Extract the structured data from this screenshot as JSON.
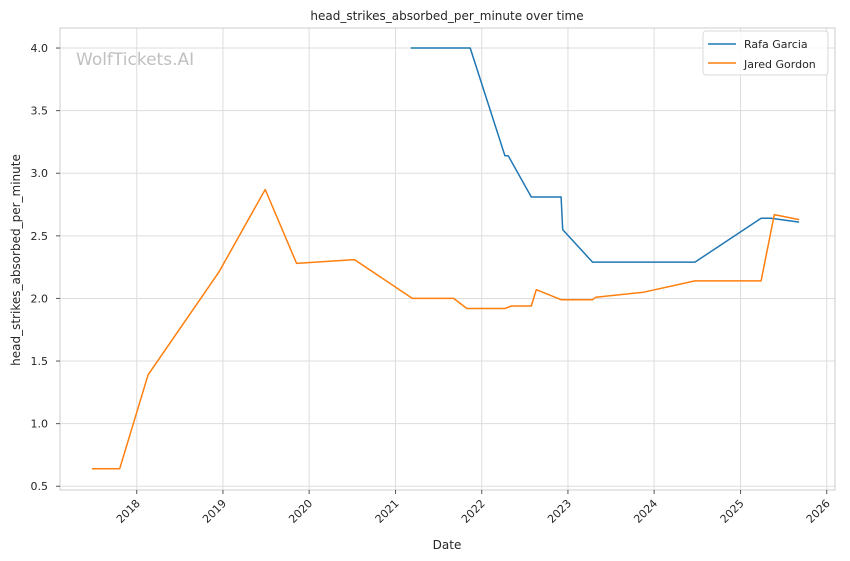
{
  "chart_data": {
    "type": "line",
    "title": "head_strikes_absorbed_per_minute over time",
    "xlabel": "Date",
    "ylabel": "head_strikes_absorbed_per_minute",
    "watermark": "WolfTickets.AI",
    "x_tick_labels": [
      "2018",
      "2019",
      "2020",
      "2021",
      "2022",
      "2023",
      "2024",
      "2025",
      "2026"
    ],
    "y_tick_labels": [
      "0.5",
      "1.0",
      "1.5",
      "2.0",
      "2.5",
      "3.0",
      "3.5",
      "4.0"
    ],
    "ylim": [
      0.47,
      4.16
    ],
    "xlim": [
      "2017-02-10",
      "2026-02-05"
    ],
    "grid": true,
    "legend_position": "top-right",
    "series": [
      {
        "name": "Rafa Garcia",
        "color": "#1f77b4",
        "points": [
          [
            "2021-03-06",
            4.0
          ],
          [
            "2021-11-13",
            4.0
          ],
          [
            "2022-04-09",
            3.14
          ],
          [
            "2022-04-23",
            3.14
          ],
          [
            "2022-07-30",
            2.81
          ],
          [
            "2022-12-03",
            2.81
          ],
          [
            "2022-12-10",
            2.55
          ],
          [
            "2023-04-15",
            2.29
          ],
          [
            "2024-06-22",
            2.29
          ],
          [
            "2025-03-29",
            2.64
          ],
          [
            "2025-05-10",
            2.64
          ],
          [
            "2025-09-06",
            2.61
          ]
        ]
      },
      {
        "name": "Jared Gordon",
        "color": "#ff7f0e",
        "points": [
          [
            "2017-06-25",
            0.64
          ],
          [
            "2017-10-21",
            0.64
          ],
          [
            "2018-02-18",
            1.39
          ],
          [
            "2018-12-15",
            2.21
          ],
          [
            "2019-06-29",
            2.87
          ],
          [
            "2019-11-09",
            2.28
          ],
          [
            "2020-07-11",
            2.31
          ],
          [
            "2021-03-13",
            2.0
          ],
          [
            "2021-09-04",
            2.0
          ],
          [
            "2021-10-30",
            1.92
          ],
          [
            "2022-04-09",
            1.92
          ],
          [
            "2022-05-07",
            1.94
          ],
          [
            "2022-07-30",
            1.94
          ],
          [
            "2022-08-20",
            2.07
          ],
          [
            "2022-12-03",
            1.99
          ],
          [
            "2023-04-15",
            1.99
          ],
          [
            "2023-04-29",
            2.01
          ],
          [
            "2023-11-18",
            2.05
          ],
          [
            "2024-06-22",
            2.14
          ],
          [
            "2025-03-29",
            2.14
          ],
          [
            "2025-05-24",
            2.67
          ],
          [
            "2025-09-06",
            2.63
          ]
        ]
      }
    ]
  }
}
